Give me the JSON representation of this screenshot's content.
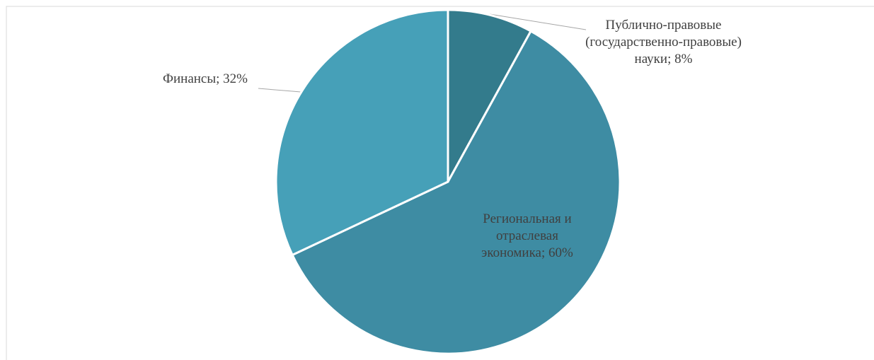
{
  "chart_data": {
    "type": "pie",
    "values": [
      8,
      60,
      32
    ],
    "value_labels": [
      "Публично-правовые (государственно-правовые) науки; 8%",
      "Региональная и отраслевая экономика; 60%",
      "Финансы; 32%"
    ],
    "colors": [
      "#337b8c",
      "#3e8ca3",
      "#46a0b8"
    ]
  }
}
